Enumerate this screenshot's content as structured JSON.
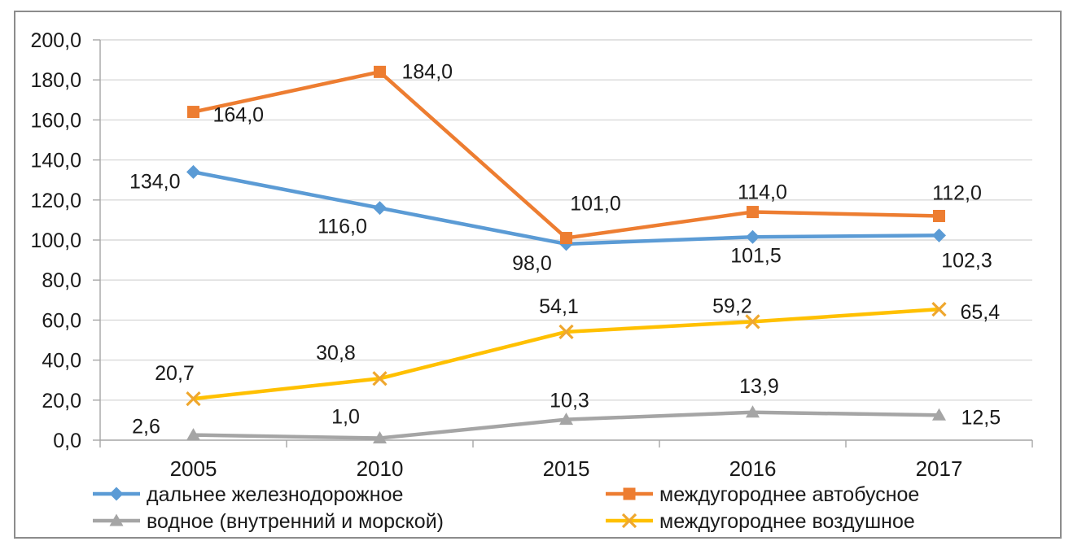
{
  "frame": {
    "background": "#FFFFFF",
    "border_color": "#8C8C8C"
  },
  "colors": {
    "gridline": "#D9D9D9",
    "axis": "#A6A6A6",
    "text": "#1A1A1A"
  },
  "chart_data": {
    "type": "line",
    "title": "",
    "xlabel": "",
    "ylabel": "",
    "x_categories": [
      "2005",
      "2010",
      "2015",
      "2016",
      "2017"
    ],
    "ylim": [
      0,
      200
    ],
    "ytick_step": 20,
    "ytick_labels": [
      "0,0",
      "20,0",
      "40,0",
      "60,0",
      "80,0",
      "100,0",
      "120,0",
      "140,0",
      "160,0",
      "180,0",
      "200,0"
    ],
    "grid": true,
    "legend_position": "bottom",
    "series": [
      {
        "name": "дальнее железнодорожное",
        "color": "#5B9BD5",
        "marker": "diamond",
        "values": [
          134.0,
          116.0,
          98.0,
          101.5,
          102.3
        ],
        "labels": [
          "134,0",
          "116,0",
          "98,0",
          "101,5",
          "102,3"
        ],
        "label_offsets": [
          [
            -16,
            20,
            "e"
          ],
          [
            -46,
            31,
            "m"
          ],
          [
            -42,
            32,
            "m"
          ],
          [
            4,
            31,
            "m"
          ],
          [
            34,
            39,
            "m"
          ]
        ]
      },
      {
        "name": "междугороднее автобусное",
        "color": "#ED7D31",
        "marker": "square",
        "values": [
          164.0,
          184.0,
          101.0,
          114.0,
          112.0
        ],
        "labels": [
          "164,0",
          "184,0",
          "101,0",
          "114,0",
          "112,0"
        ],
        "label_offsets": [
          [
            24,
            12,
            "s"
          ],
          [
            27,
            8,
            "s"
          ],
          [
            36,
            -34,
            "m"
          ],
          [
            12,
            -16,
            "m"
          ],
          [
            22,
            -20,
            "m"
          ]
        ]
      },
      {
        "name": "водное (внутренний и морской)",
        "color": "#A5A5A5",
        "marker": "triangle",
        "values": [
          2.6,
          1.0,
          10.3,
          13.9,
          12.5
        ],
        "labels": [
          "2,6",
          "1,0",
          "10,3",
          "13,9",
          "12,5"
        ],
        "label_offsets": [
          [
            -58,
            -2,
            "m"
          ],
          [
            -42,
            -18,
            "m"
          ],
          [
            4,
            -15,
            "m"
          ],
          [
            8,
            -24,
            "m"
          ],
          [
            27,
            11,
            "s"
          ]
        ]
      },
      {
        "name": "междугороднее воздушное",
        "color": "#FFC000",
        "marker": "x",
        "marker_color": "#EFA72E",
        "values": [
          20.7,
          30.8,
          54.1,
          59.2,
          65.4
        ],
        "labels": [
          "20,7",
          "30,8",
          "54,1",
          "59,2",
          "65,4"
        ],
        "label_offsets": [
          [
            -23,
            -23,
            "m"
          ],
          [
            -54,
            -23,
            "m"
          ],
          [
            -9,
            -23,
            "m"
          ],
          [
            -25,
            -11,
            "m"
          ],
          [
            26,
            12,
            "s"
          ]
        ]
      }
    ],
    "legend_columns": [
      [
        0,
        2
      ],
      [
        1,
        3
      ]
    ]
  }
}
